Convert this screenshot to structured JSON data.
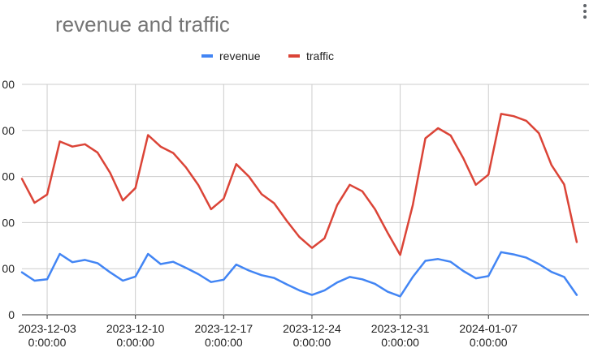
{
  "chart_data": {
    "type": "line",
    "title": "revenue and traffic",
    "legend_position": "top",
    "grid": true,
    "x_ticks": [
      {
        "date": "2023-12-03",
        "time": "0:00:00"
      },
      {
        "date": "2023-12-10",
        "time": "0:00:00"
      },
      {
        "date": "2023-12-17",
        "time": "0:00:00"
      },
      {
        "date": "2023-12-24",
        "time": "0:00:00"
      },
      {
        "date": "2023-12-31",
        "time": "0:00:00"
      },
      {
        "date": "2024-01-07",
        "time": "0:00:00"
      }
    ],
    "y_ticks": [
      "0",
      "00",
      "00",
      "00",
      "00",
      "00"
    ],
    "x": [
      "2023-12-01",
      "2023-12-02",
      "2023-12-03",
      "2023-12-04",
      "2023-12-05",
      "2023-12-06",
      "2023-12-07",
      "2023-12-08",
      "2023-12-09",
      "2023-12-10",
      "2023-12-11",
      "2023-12-12",
      "2023-12-13",
      "2023-12-14",
      "2023-12-15",
      "2023-12-16",
      "2023-12-17",
      "2023-12-18",
      "2023-12-19",
      "2023-12-20",
      "2023-12-21",
      "2023-12-22",
      "2023-12-23",
      "2023-12-24",
      "2023-12-25",
      "2023-12-26",
      "2023-12-27",
      "2023-12-28",
      "2023-12-29",
      "2023-12-30",
      "2023-12-31",
      "2024-01-01",
      "2024-01-02",
      "2024-01-03",
      "2024-01-04",
      "2024-01-05",
      "2024-01-06",
      "2024-01-07",
      "2024-01-08",
      "2024-01-09",
      "2024-01-10",
      "2024-01-11",
      "2024-01-12",
      "2024-01-13",
      "2024-01-14"
    ],
    "ylim": [
      0,
      5
    ],
    "series": [
      {
        "name": "revenue",
        "color": "#4285f4",
        "values": [
          0.92,
          0.74,
          0.77,
          1.32,
          1.14,
          1.19,
          1.12,
          0.92,
          0.74,
          0.83,
          1.32,
          1.1,
          1.15,
          1.02,
          0.88,
          0.71,
          0.76,
          1.09,
          0.96,
          0.86,
          0.8,
          0.66,
          0.53,
          0.43,
          0.53,
          0.7,
          0.82,
          0.77,
          0.67,
          0.5,
          0.4,
          0.82,
          1.17,
          1.21,
          1.15,
          0.95,
          0.79,
          0.84,
          1.36,
          1.31,
          1.24,
          1.1,
          0.93,
          0.82,
          0.43
        ]
      },
      {
        "name": "traffic",
        "color": "#db4437",
        "values": [
          2.95,
          2.43,
          2.61,
          3.76,
          3.65,
          3.7,
          3.52,
          3.08,
          2.48,
          2.75,
          3.9,
          3.65,
          3.51,
          3.2,
          2.81,
          2.29,
          2.52,
          3.27,
          3.0,
          2.62,
          2.42,
          2.04,
          1.69,
          1.45,
          1.66,
          2.38,
          2.82,
          2.68,
          2.29,
          1.78,
          1.3,
          2.38,
          3.83,
          4.05,
          3.89,
          3.4,
          2.82,
          3.04,
          4.36,
          4.31,
          4.21,
          3.94,
          3.25,
          2.83,
          1.58
        ]
      }
    ]
  }
}
